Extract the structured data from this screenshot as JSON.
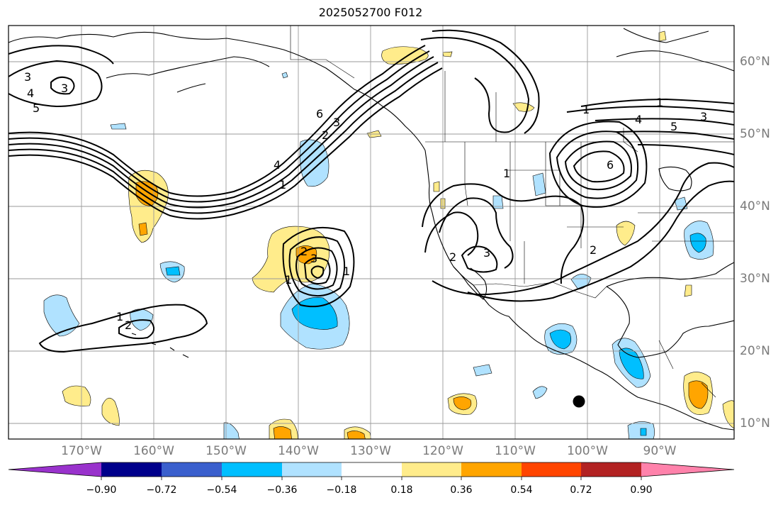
{
  "title": "2025052700 F012",
  "map": {
    "lon_labels": [
      "170°W",
      "160°W",
      "150°W",
      "140°W",
      "130°W",
      "120°W",
      "110°W",
      "100°W",
      "90°W"
    ],
    "lat_labels": [
      "60°N",
      "50°N",
      "40°N",
      "30°N",
      "20°N",
      "10°N"
    ],
    "colors": {
      "land_outline": "#000000",
      "grid": "#9a9a9a",
      "contour": "#000000",
      "marker": "#000000"
    },
    "contour_labels": [
      "3",
      "4",
      "5",
      "3",
      "6",
      "3",
      "2",
      "1",
      "4",
      "1",
      "1",
      "4",
      "5",
      "3",
      "6",
      "1",
      "2",
      "3",
      "2",
      "2",
      "3",
      "1",
      "1",
      "2",
      "1"
    ],
    "marker_icon": "black-dot-marker"
  },
  "colorbar": {
    "ticks": [
      "−0.90",
      "−0.72",
      "−0.54",
      "−0.36",
      "−0.18",
      "0.18",
      "0.36",
      "0.54",
      "0.72",
      "0.90"
    ],
    "colors": [
      "#9932cc",
      "#00008b",
      "#3a5fcd",
      "#00bfff",
      "#b0e2ff",
      "#ffffff",
      "#ffec8b",
      "#ffa500",
      "#ff4500",
      "#b22222",
      "#ff82ab"
    ]
  }
}
